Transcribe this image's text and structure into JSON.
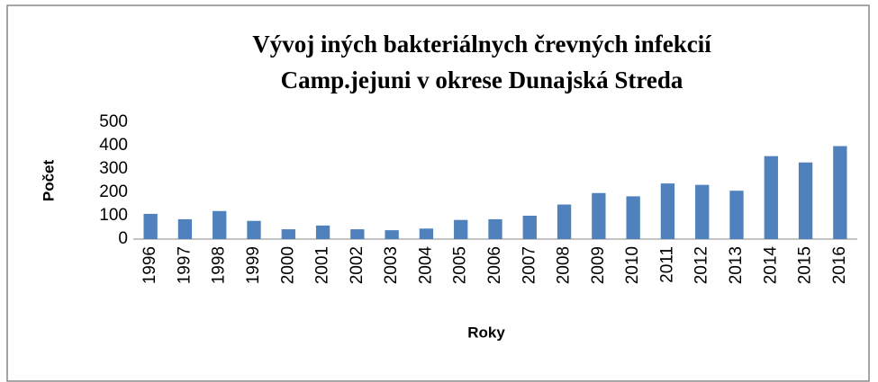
{
  "chart_data": {
    "type": "bar",
    "title": [
      "Vývoj iných bakteriálnych črevných infekcií",
      "Camp.jejuni v okrese Dunajská Streda"
    ],
    "x_label": "Roky",
    "y_label": "Počet",
    "categories": [
      "1996",
      "1997",
      "1998",
      "1999",
      "2000",
      "2001",
      "2002",
      "2003",
      "2004",
      "2005",
      "2006",
      "2007",
      "2008",
      "2009",
      "2010",
      "2011",
      "2012",
      "2013",
      "2014",
      "2015",
      "2016"
    ],
    "values": [
      108,
      85,
      120,
      78,
      42,
      58,
      42,
      38,
      45,
      82,
      85,
      100,
      148,
      197,
      183,
      238,
      232,
      207,
      355,
      328,
      398
    ],
    "color": "#4f81bd",
    "ylim": [
      0,
      500
    ],
    "yticks": [
      0,
      100,
      200,
      300,
      400,
      500
    ],
    "grid": false
  }
}
